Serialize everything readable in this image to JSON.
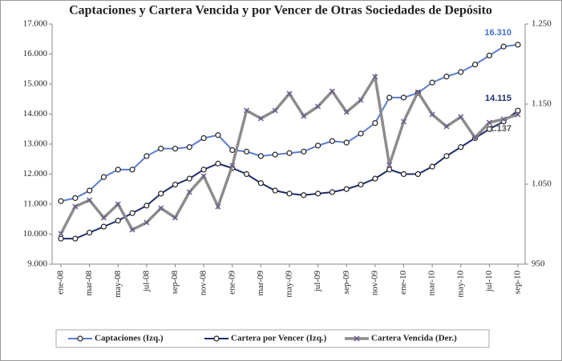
{
  "chart_data": {
    "type": "line",
    "title": "Captaciones y Cartera Vencida y por Vencer de Otras Sociedades de Depósito",
    "categories": [
      "ene-08",
      null,
      "mar-08",
      null,
      "may-08",
      null,
      "jul-08",
      null,
      "sep-08",
      null,
      "nov-08",
      null,
      "ene-09",
      null,
      "mar-09",
      null,
      "may-09",
      null,
      "jul-09",
      null,
      "sep-09",
      null,
      "nov-09",
      null,
      "ene-10",
      null,
      "mar-10",
      null,
      "may-10",
      null,
      "jul-10",
      null,
      "sep-10"
    ],
    "series": [
      {
        "name": "Captaciones (Izq.)",
        "color": "#5b7fce",
        "marker": "circle",
        "values": [
          11100,
          11200,
          11450,
          11900,
          12150,
          12150,
          12600,
          12850,
          12850,
          12900,
          13200,
          13300,
          12800,
          12750,
          12600,
          12650,
          12700,
          12750,
          12950,
          13100,
          13050,
          13350,
          13700,
          14550,
          14550,
          14700,
          15050,
          15250,
          15400,
          15650,
          15950,
          16250,
          16310
        ],
        "value_labels": [
          null,
          null,
          null,
          null,
          null,
          null,
          null,
          null,
          null,
          null,
          null,
          null,
          null,
          null,
          null,
          null,
          null,
          null,
          null,
          null,
          null,
          null,
          null,
          null,
          null,
          null,
          null,
          null,
          null,
          null,
          null,
          null,
          "16.310"
        ]
      },
      {
        "name": "Cartera por Vencer (Izq.)",
        "color": "#1f2d6b",
        "marker": "circle",
        "values": [
          9850,
          9850,
          10050,
          10250,
          10450,
          10700,
          10950,
          11350,
          11650,
          11850,
          12150,
          12350,
          12200,
          12000,
          11700,
          11450,
          11350,
          11300,
          11350,
          11400,
          11500,
          11650,
          11850,
          12150,
          12000,
          12000,
          12250,
          12600,
          12900,
          13200,
          13500,
          13750,
          14115
        ],
        "value_labels": [
          null,
          null,
          null,
          null,
          null,
          null,
          null,
          null,
          null,
          null,
          null,
          null,
          null,
          null,
          null,
          null,
          null,
          null,
          null,
          null,
          null,
          null,
          null,
          null,
          null,
          null,
          null,
          null,
          null,
          null,
          null,
          null,
          "14.115"
        ]
      },
      {
        "name": "Cartera Vencida (Der.)",
        "color": "#8c8c8c",
        "marker": "x",
        "axis": "y2",
        "values": [
          988,
          1022,
          1030,
          1008,
          1025,
          993,
          1002,
          1020,
          1008,
          1040,
          1060,
          1022,
          1073,
          1142,
          1132,
          1142,
          1163,
          1135,
          1147,
          1166,
          1140,
          1155,
          1184,
          1074,
          1128,
          1165,
          1137,
          1122,
          1134,
          1108,
          1127,
          1131,
          1137
        ],
        "value_labels": [
          null,
          null,
          null,
          null,
          null,
          null,
          null,
          null,
          null,
          null,
          null,
          null,
          null,
          null,
          null,
          null,
          null,
          null,
          null,
          null,
          null,
          null,
          null,
          null,
          null,
          null,
          null,
          null,
          null,
          null,
          null,
          null,
          "1.137"
        ]
      }
    ],
    "ylim": [
      9000,
      17000
    ],
    "yticks": [
      {
        "value": 9000,
        "label": "9.000"
      },
      {
        "value": 10000,
        "label": "10.000"
      },
      {
        "value": 11000,
        "label": "11.000"
      },
      {
        "value": 12000,
        "label": "12.000"
      },
      {
        "value": 13000,
        "label": "13.000"
      },
      {
        "value": 14000,
        "label": "14.000"
      },
      {
        "value": 15000,
        "label": "15.000"
      },
      {
        "value": 16000,
        "label": "16.000"
      },
      {
        "value": 17000,
        "label": "17.000"
      }
    ],
    "y2lim": [
      950,
      1250
    ],
    "y2ticks": [
      950,
      {
        "value": 1050,
        "label": "1.050"
      },
      {
        "value": 1150,
        "label": "1.150"
      },
      {
        "value": 1250,
        "label": "1.250"
      }
    ],
    "grid": false,
    "legend": "bottom"
  }
}
